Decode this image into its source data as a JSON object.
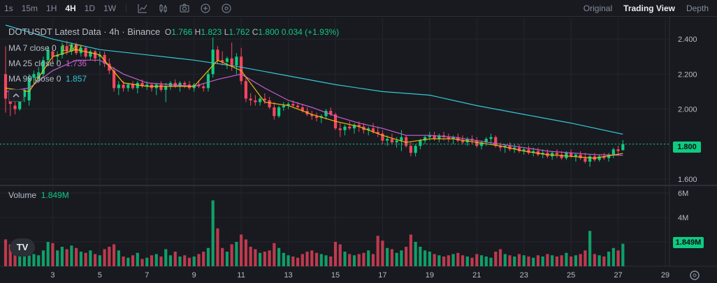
{
  "toolbar": {
    "timeframes": [
      "1s",
      "15m",
      "1H",
      "4H",
      "1D",
      "1W"
    ],
    "active_timeframe": "4H",
    "tools": [
      "indicator-icon",
      "candle-type-icon",
      "screenshot-icon",
      "add-icon",
      "settings-gear-icon"
    ],
    "views": [
      "Original",
      "Trading View",
      "Depth"
    ],
    "active_view": "Trading View"
  },
  "legend": {
    "title": "DOTUSDT Latest Data · 4h · Binance",
    "ohlc": {
      "o_label": "O",
      "o": "1.766",
      "h_label": "H",
      "h": "1.823",
      "l_label": "L",
      "l": "1.762",
      "c_label": "C",
      "c": "1.800",
      "change": "0.034 (+1.93%)"
    },
    "ma7": {
      "label": "MA 7 close 0",
      "value": "1.747"
    },
    "ma25": {
      "label": "MA 25 close 0",
      "value": "1.736"
    },
    "ma99": {
      "label": "MA 99 close 0",
      "value": "1.857"
    },
    "volume": {
      "label": "Volume",
      "value": "1.849M"
    }
  },
  "price_axis": {
    "ticks": [
      "2.400",
      "2.200",
      "2.000",
      "1.800",
      "1.600"
    ],
    "last_price": "1.800"
  },
  "volume_axis": {
    "ticks": [
      "6M",
      "4M"
    ],
    "last_volume": "1.849M"
  },
  "date_axis": {
    "ticks": [
      "3",
      "5",
      "7",
      "9",
      "11",
      "13",
      "15",
      "17",
      "19",
      "21",
      "23",
      "25",
      "27",
      "29"
    ]
  },
  "colors": {
    "up": "#0ecb81",
    "down": "#f6465d",
    "ma7": "#f0b90b",
    "ma25": "#c65fd1",
    "ma99": "#35c7d6",
    "background": "#181a20"
  },
  "logo": "TV",
  "chart_data": {
    "type": "candlestick",
    "pair": "DOTUSDT",
    "interval": "4h",
    "date_ticks": [
      3,
      5,
      7,
      9,
      11,
      13,
      15,
      17,
      19,
      21,
      23,
      25,
      27,
      29
    ],
    "ylim": [
      1.58,
      2.52
    ],
    "volume_ylim": [
      0,
      6400000
    ],
    "candles": [
      [
        1.0,
        2.2,
        2.36,
        1.98,
        2.06,
        2.2
      ],
      [
        1.2,
        2.07,
        2.1,
        1.96,
        2.03,
        1.8
      ],
      [
        1.4,
        2.02,
        2.08,
        1.97,
        2.0,
        1.3
      ],
      [
        1.6,
        2.0,
        2.11,
        1.99,
        2.09,
        1.5
      ],
      [
        1.8,
        2.07,
        2.12,
        2.04,
        2.11,
        1.4
      ],
      [
        2.0,
        2.05,
        2.2,
        2.02,
        2.18,
        1.2
      ],
      [
        2.2,
        2.18,
        2.22,
        2.14,
        2.2,
        1.0
      ],
      [
        2.4,
        2.17,
        2.24,
        2.15,
        2.21,
        0.9
      ],
      [
        2.6,
        2.2,
        2.3,
        2.18,
        2.28,
        1.3
      ],
      [
        2.8,
        2.28,
        2.36,
        2.25,
        2.34,
        2.0
      ],
      [
        3.0,
        2.33,
        2.35,
        2.27,
        2.3,
        1.9
      ],
      [
        3.2,
        2.3,
        2.33,
        2.26,
        2.31,
        1.3
      ],
      [
        3.4,
        2.31,
        2.38,
        2.29,
        2.36,
        1.6
      ],
      [
        3.6,
        2.36,
        2.39,
        2.31,
        2.33,
        1.4
      ],
      [
        3.8,
        2.33,
        2.38,
        2.31,
        2.37,
        1.7
      ],
      [
        4.0,
        2.37,
        2.38,
        2.31,
        2.32,
        1.5
      ],
      [
        4.2,
        2.32,
        2.36,
        2.3,
        2.35,
        1.2
      ],
      [
        4.4,
        2.35,
        2.36,
        2.29,
        2.3,
        1.1
      ],
      [
        4.6,
        2.3,
        2.34,
        2.28,
        2.33,
        1.3
      ],
      [
        4.8,
        2.33,
        2.34,
        2.27,
        2.29,
        1.0
      ],
      [
        5.0,
        2.3,
        2.33,
        2.25,
        2.31,
        0.9
      ],
      [
        5.2,
        2.31,
        2.33,
        2.24,
        2.26,
        1.4
      ],
      [
        5.4,
        2.26,
        2.29,
        2.2,
        2.22,
        1.6
      ],
      [
        5.6,
        2.22,
        2.24,
        2.1,
        2.12,
        1.8
      ],
      [
        5.8,
        2.12,
        2.16,
        2.08,
        2.14,
        1.3
      ],
      [
        6.0,
        2.14,
        2.16,
        2.1,
        2.12,
        0.8
      ],
      [
        6.2,
        2.12,
        2.15,
        2.1,
        2.14,
        0.7
      ],
      [
        6.4,
        2.14,
        2.16,
        2.11,
        2.12,
        0.9
      ],
      [
        6.6,
        2.12,
        2.16,
        2.09,
        2.15,
        1.1
      ],
      [
        6.8,
        2.15,
        2.17,
        2.12,
        2.13,
        0.6
      ],
      [
        7.0,
        2.13,
        2.16,
        2.11,
        2.14,
        0.7
      ],
      [
        7.2,
        2.14,
        2.15,
        2.1,
        2.12,
        0.9
      ],
      [
        7.4,
        2.12,
        2.15,
        2.08,
        2.14,
        1.0
      ],
      [
        7.6,
        2.14,
        2.16,
        2.1,
        2.11,
        0.8
      ],
      [
        7.8,
        2.11,
        2.15,
        2.04,
        2.13,
        1.4
      ],
      [
        8.0,
        2.13,
        2.16,
        2.11,
        2.15,
        0.9
      ],
      [
        8.2,
        2.15,
        2.17,
        2.12,
        2.13,
        1.2
      ],
      [
        8.4,
        2.13,
        2.16,
        2.1,
        2.15,
        0.8
      ],
      [
        8.6,
        2.15,
        2.16,
        2.12,
        2.14,
        0.9
      ],
      [
        8.8,
        2.14,
        2.16,
        2.11,
        2.12,
        0.7
      ],
      [
        9.0,
        2.12,
        2.15,
        2.1,
        2.14,
        0.8
      ],
      [
        9.2,
        2.14,
        2.16,
        2.12,
        2.13,
        1.0
      ],
      [
        9.4,
        2.13,
        2.15,
        2.1,
        2.12,
        1.2
      ],
      [
        9.6,
        2.12,
        2.22,
        2.1,
        2.2,
        1.5
      ],
      [
        9.8,
        2.2,
        2.41,
        2.18,
        2.34,
        5.4
      ],
      [
        10.0,
        2.34,
        2.36,
        2.26,
        2.28,
        3.1
      ],
      [
        10.2,
        2.28,
        2.33,
        2.25,
        2.27,
        1.5
      ],
      [
        10.4,
        2.27,
        2.3,
        2.23,
        2.29,
        1.2
      ],
      [
        10.6,
        2.29,
        2.38,
        2.22,
        2.25,
        1.8
      ],
      [
        10.8,
        2.25,
        2.32,
        2.2,
        2.3,
        2.0
      ],
      [
        11.0,
        2.3,
        2.35,
        2.14,
        2.16,
        2.6
      ],
      [
        11.2,
        2.16,
        2.18,
        2.04,
        2.06,
        2.2
      ],
      [
        11.4,
        2.06,
        2.09,
        2.02,
        2.05,
        1.6
      ],
      [
        11.6,
        2.05,
        2.08,
        2.02,
        2.04,
        1.4
      ],
      [
        11.8,
        2.04,
        2.07,
        2.02,
        2.06,
        1.1
      ],
      [
        12.0,
        2.06,
        2.09,
        2.03,
        2.05,
        1.2
      ],
      [
        12.2,
        2.05,
        2.07,
        2.0,
        2.01,
        1.3
      ],
      [
        12.4,
        2.01,
        2.04,
        1.94,
        1.96,
        1.9
      ],
      [
        12.6,
        1.96,
        2.02,
        1.95,
        2.01,
        1.5
      ],
      [
        12.8,
        2.01,
        2.04,
        1.99,
        2.02,
        1.1
      ],
      [
        13.0,
        2.02,
        2.04,
        2.0,
        2.03,
        0.9
      ],
      [
        13.2,
        2.03,
        2.05,
        2.01,
        2.02,
        0.8
      ],
      [
        13.4,
        2.02,
        2.04,
        2.0,
        2.01,
        0.7
      ],
      [
        13.6,
        2.01,
        2.03,
        1.98,
        1.99,
        1.0
      ],
      [
        13.8,
        1.99,
        2.01,
        1.96,
        1.97,
        1.2
      ],
      [
        14.0,
        1.97,
        1.99,
        1.94,
        1.96,
        1.3
      ],
      [
        14.2,
        1.96,
        1.98,
        1.93,
        1.95,
        1.1
      ],
      [
        14.4,
        1.95,
        1.97,
        1.92,
        1.96,
        1.0
      ],
      [
        14.6,
        1.96,
        2.0,
        1.94,
        1.99,
        0.9
      ],
      [
        14.8,
        1.99,
        2.01,
        1.96,
        1.97,
        0.8
      ],
      [
        15.0,
        1.97,
        1.98,
        1.88,
        1.89,
        2.0
      ],
      [
        15.2,
        1.89,
        1.92,
        1.84,
        1.88,
        1.8
      ],
      [
        15.4,
        1.88,
        1.91,
        1.85,
        1.9,
        1.2
      ],
      [
        15.6,
        1.9,
        1.93,
        1.88,
        1.89,
        1.0
      ],
      [
        15.8,
        1.89,
        1.92,
        1.86,
        1.91,
        0.9
      ],
      [
        16.0,
        1.91,
        1.93,
        1.87,
        1.9,
        1.0
      ],
      [
        16.2,
        1.9,
        1.92,
        1.86,
        1.88,
        1.1
      ],
      [
        16.4,
        1.88,
        1.9,
        1.85,
        1.89,
        1.3
      ],
      [
        16.6,
        1.89,
        1.92,
        1.86,
        1.87,
        1.0
      ],
      [
        16.8,
        1.87,
        1.9,
        1.84,
        1.86,
        2.5
      ],
      [
        17.0,
        1.86,
        1.88,
        1.8,
        1.82,
        2.1
      ],
      [
        17.2,
        1.82,
        1.85,
        1.79,
        1.83,
        1.5
      ],
      [
        17.4,
        1.83,
        1.86,
        1.8,
        1.81,
        1.4
      ],
      [
        17.6,
        1.81,
        1.84,
        1.78,
        1.82,
        1.1
      ],
      [
        17.8,
        1.82,
        1.88,
        1.76,
        1.84,
        1.3
      ],
      [
        18.0,
        1.84,
        1.85,
        1.78,
        1.79,
        1.6
      ],
      [
        18.2,
        1.79,
        1.81,
        1.73,
        1.75,
        2.6
      ],
      [
        18.4,
        1.75,
        1.8,
        1.73,
        1.79,
        2.0
      ],
      [
        18.6,
        1.79,
        1.83,
        1.77,
        1.82,
        1.6
      ],
      [
        18.8,
        1.82,
        1.85,
        1.8,
        1.84,
        1.3
      ],
      [
        19.0,
        1.84,
        1.87,
        1.82,
        1.85,
        1.2
      ],
      [
        19.2,
        1.85,
        1.87,
        1.82,
        1.83,
        1.0
      ],
      [
        19.4,
        1.83,
        1.86,
        1.81,
        1.85,
        0.9
      ],
      [
        19.6,
        1.85,
        1.87,
        1.82,
        1.84,
        0.8
      ],
      [
        19.8,
        1.84,
        1.86,
        1.81,
        1.83,
        0.9
      ],
      [
        20.0,
        1.83,
        1.85,
        1.8,
        1.84,
        1.0
      ],
      [
        20.2,
        1.84,
        1.86,
        1.81,
        1.82,
        1.1
      ],
      [
        20.4,
        1.82,
        1.85,
        1.8,
        1.81,
        0.9
      ],
      [
        20.6,
        1.81,
        1.84,
        1.79,
        1.83,
        0.8
      ],
      [
        20.8,
        1.83,
        1.85,
        1.8,
        1.82,
        0.7
      ],
      [
        21.0,
        1.82,
        1.84,
        1.78,
        1.79,
        1.0
      ],
      [
        21.2,
        1.79,
        1.82,
        1.77,
        1.81,
        0.9
      ],
      [
        21.4,
        1.81,
        1.84,
        1.79,
        1.83,
        0.8
      ],
      [
        21.6,
        1.83,
        1.86,
        1.8,
        1.84,
        0.7
      ],
      [
        21.8,
        1.84,
        1.85,
        1.78,
        1.79,
        1.2
      ],
      [
        22.0,
        1.79,
        1.81,
        1.76,
        1.78,
        1.4
      ],
      [
        22.2,
        1.78,
        1.8,
        1.75,
        1.79,
        1.0
      ],
      [
        22.4,
        1.79,
        1.81,
        1.76,
        1.77,
        0.9
      ],
      [
        22.6,
        1.77,
        1.8,
        1.75,
        1.78,
        0.8
      ],
      [
        22.8,
        1.78,
        1.8,
        1.75,
        1.76,
        1.0
      ],
      [
        23.0,
        1.76,
        1.78,
        1.74,
        1.77,
        0.9
      ],
      [
        23.2,
        1.77,
        1.79,
        1.74,
        1.75,
        0.8
      ],
      [
        23.4,
        1.75,
        1.78,
        1.73,
        1.76,
        0.7
      ],
      [
        23.6,
        1.76,
        1.78,
        1.73,
        1.74,
        0.9
      ],
      [
        23.8,
        1.74,
        1.77,
        1.72,
        1.75,
        0.8
      ],
      [
        24.0,
        1.75,
        1.77,
        1.72,
        1.73,
        1.0
      ],
      [
        24.2,
        1.73,
        1.76,
        1.71,
        1.75,
        0.9
      ],
      [
        24.4,
        1.75,
        1.77,
        1.72,
        1.74,
        0.8
      ],
      [
        24.6,
        1.74,
        1.76,
        1.71,
        1.72,
        0.9
      ],
      [
        24.8,
        1.72,
        1.76,
        1.71,
        1.75,
        1.1
      ],
      [
        25.0,
        1.75,
        1.77,
        1.72,
        1.73,
        0.8
      ],
      [
        25.2,
        1.73,
        1.75,
        1.7,
        1.74,
        0.9
      ],
      [
        25.4,
        1.74,
        1.76,
        1.71,
        1.72,
        1.0
      ],
      [
        25.6,
        1.72,
        1.75,
        1.69,
        1.7,
        1.3
      ],
      [
        25.8,
        1.7,
        1.74,
        1.67,
        1.73,
        2.9
      ],
      [
        26.0,
        1.73,
        1.75,
        1.7,
        1.71,
        1.0
      ],
      [
        26.2,
        1.71,
        1.74,
        1.7,
        1.73,
        0.9
      ],
      [
        26.4,
        1.73,
        1.75,
        1.71,
        1.72,
        0.8
      ],
      [
        26.6,
        1.72,
        1.75,
        1.7,
        1.74,
        1.2
      ],
      [
        26.8,
        1.74,
        1.78,
        1.72,
        1.77,
        1.5
      ],
      [
        27.0,
        1.77,
        1.79,
        1.74,
        1.76,
        1.3
      ],
      [
        27.2,
        1.766,
        1.823,
        1.762,
        1.8,
        1.849
      ]
    ],
    "ma7": [
      [
        1.0,
        2.12
      ],
      [
        2.0,
        2.1
      ],
      [
        3.0,
        2.3
      ],
      [
        4.0,
        2.34
      ],
      [
        5.0,
        2.31
      ],
      [
        6.0,
        2.15
      ],
      [
        7.0,
        2.13
      ],
      [
        8.0,
        2.13
      ],
      [
        9.0,
        2.13
      ],
      [
        10.0,
        2.28
      ],
      [
        11.0,
        2.22
      ],
      [
        12.0,
        2.04
      ],
      [
        13.0,
        2.02
      ],
      [
        14.0,
        1.97
      ],
      [
        15.0,
        1.93
      ],
      [
        16.0,
        1.9
      ],
      [
        17.0,
        1.85
      ],
      [
        18.0,
        1.81
      ],
      [
        19.0,
        1.83
      ],
      [
        20.0,
        1.83
      ],
      [
        21.0,
        1.81
      ],
      [
        22.0,
        1.79
      ],
      [
        23.0,
        1.76
      ],
      [
        24.0,
        1.74
      ],
      [
        25.0,
        1.73
      ],
      [
        26.0,
        1.72
      ],
      [
        27.2,
        1.747
      ]
    ],
    "ma25": [
      [
        1.0,
        2.1
      ],
      [
        2.0,
        2.12
      ],
      [
        3.0,
        2.22
      ],
      [
        4.0,
        2.28
      ],
      [
        5.0,
        2.28
      ],
      [
        6.0,
        2.2
      ],
      [
        7.0,
        2.15
      ],
      [
        8.0,
        2.14
      ],
      [
        9.0,
        2.13
      ],
      [
        10.0,
        2.17
      ],
      [
        11.0,
        2.2
      ],
      [
        12.0,
        2.12
      ],
      [
        13.0,
        2.05
      ],
      [
        14.0,
        2.01
      ],
      [
        15.0,
        1.96
      ],
      [
        16.0,
        1.92
      ],
      [
        17.0,
        1.89
      ],
      [
        18.0,
        1.85
      ],
      [
        19.0,
        1.85
      ],
      [
        20.0,
        1.84
      ],
      [
        21.0,
        1.82
      ],
      [
        22.0,
        1.8
      ],
      [
        23.0,
        1.78
      ],
      [
        24.0,
        1.76
      ],
      [
        25.0,
        1.75
      ],
      [
        26.0,
        1.74
      ],
      [
        27.2,
        1.736
      ]
    ],
    "ma99": [
      [
        1.0,
        2.48
      ],
      [
        3.0,
        2.4
      ],
      [
        5.0,
        2.34
      ],
      [
        7.0,
        2.31
      ],
      [
        9.0,
        2.28
      ],
      [
        11.0,
        2.24
      ],
      [
        13.0,
        2.19
      ],
      [
        15.0,
        2.14
      ],
      [
        17.0,
        2.1
      ],
      [
        19.0,
        2.08
      ],
      [
        21.0,
        2.02
      ],
      [
        23.0,
        1.97
      ],
      [
        25.0,
        1.92
      ],
      [
        27.2,
        1.857
      ]
    ]
  }
}
